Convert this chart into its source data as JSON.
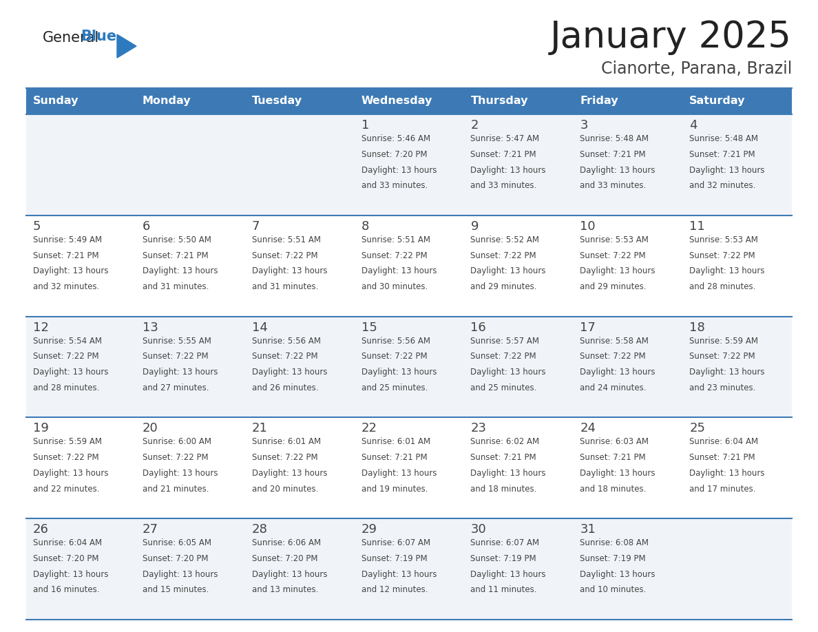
{
  "title": "January 2025",
  "subtitle": "Cianorte, Parana, Brazil",
  "days_of_week": [
    "Sunday",
    "Monday",
    "Tuesday",
    "Wednesday",
    "Thursday",
    "Friday",
    "Saturday"
  ],
  "header_bg": "#3d7ab5",
  "header_text_color": "#ffffff",
  "cell_bg_even": "#f0f4f8",
  "cell_bg_odd": "#ffffff",
  "divider_color": "#3d7ab5",
  "text_color": "#444444",
  "title_color": "#222222",
  "subtitle_color": "#444444",
  "logo_general_color": "#222222",
  "logo_blue_color": "#2e7abf",
  "calendar_data": [
    {
      "day": 1,
      "row": 0,
      "col": 3,
      "sunrise": "5:46 AM",
      "sunset": "7:20 PM",
      "daylight_hours": 13,
      "daylight_minutes": 33
    },
    {
      "day": 2,
      "row": 0,
      "col": 4,
      "sunrise": "5:47 AM",
      "sunset": "7:21 PM",
      "daylight_hours": 13,
      "daylight_minutes": 33
    },
    {
      "day": 3,
      "row": 0,
      "col": 5,
      "sunrise": "5:48 AM",
      "sunset": "7:21 PM",
      "daylight_hours": 13,
      "daylight_minutes": 33
    },
    {
      "day": 4,
      "row": 0,
      "col": 6,
      "sunrise": "5:48 AM",
      "sunset": "7:21 PM",
      "daylight_hours": 13,
      "daylight_minutes": 32
    },
    {
      "day": 5,
      "row": 1,
      "col": 0,
      "sunrise": "5:49 AM",
      "sunset": "7:21 PM",
      "daylight_hours": 13,
      "daylight_minutes": 32
    },
    {
      "day": 6,
      "row": 1,
      "col": 1,
      "sunrise": "5:50 AM",
      "sunset": "7:21 PM",
      "daylight_hours": 13,
      "daylight_minutes": 31
    },
    {
      "day": 7,
      "row": 1,
      "col": 2,
      "sunrise": "5:51 AM",
      "sunset": "7:22 PM",
      "daylight_hours": 13,
      "daylight_minutes": 31
    },
    {
      "day": 8,
      "row": 1,
      "col": 3,
      "sunrise": "5:51 AM",
      "sunset": "7:22 PM",
      "daylight_hours": 13,
      "daylight_minutes": 30
    },
    {
      "day": 9,
      "row": 1,
      "col": 4,
      "sunrise": "5:52 AM",
      "sunset": "7:22 PM",
      "daylight_hours": 13,
      "daylight_minutes": 29
    },
    {
      "day": 10,
      "row": 1,
      "col": 5,
      "sunrise": "5:53 AM",
      "sunset": "7:22 PM",
      "daylight_hours": 13,
      "daylight_minutes": 29
    },
    {
      "day": 11,
      "row": 1,
      "col": 6,
      "sunrise": "5:53 AM",
      "sunset": "7:22 PM",
      "daylight_hours": 13,
      "daylight_minutes": 28
    },
    {
      "day": 12,
      "row": 2,
      "col": 0,
      "sunrise": "5:54 AM",
      "sunset": "7:22 PM",
      "daylight_hours": 13,
      "daylight_minutes": 28
    },
    {
      "day": 13,
      "row": 2,
      "col": 1,
      "sunrise": "5:55 AM",
      "sunset": "7:22 PM",
      "daylight_hours": 13,
      "daylight_minutes": 27
    },
    {
      "day": 14,
      "row": 2,
      "col": 2,
      "sunrise": "5:56 AM",
      "sunset": "7:22 PM",
      "daylight_hours": 13,
      "daylight_minutes": 26
    },
    {
      "day": 15,
      "row": 2,
      "col": 3,
      "sunrise": "5:56 AM",
      "sunset": "7:22 PM",
      "daylight_hours": 13,
      "daylight_minutes": 25
    },
    {
      "day": 16,
      "row": 2,
      "col": 4,
      "sunrise": "5:57 AM",
      "sunset": "7:22 PM",
      "daylight_hours": 13,
      "daylight_minutes": 25
    },
    {
      "day": 17,
      "row": 2,
      "col": 5,
      "sunrise": "5:58 AM",
      "sunset": "7:22 PM",
      "daylight_hours": 13,
      "daylight_minutes": 24
    },
    {
      "day": 18,
      "row": 2,
      "col": 6,
      "sunrise": "5:59 AM",
      "sunset": "7:22 PM",
      "daylight_hours": 13,
      "daylight_minutes": 23
    },
    {
      "day": 19,
      "row": 3,
      "col": 0,
      "sunrise": "5:59 AM",
      "sunset": "7:22 PM",
      "daylight_hours": 13,
      "daylight_minutes": 22
    },
    {
      "day": 20,
      "row": 3,
      "col": 1,
      "sunrise": "6:00 AM",
      "sunset": "7:22 PM",
      "daylight_hours": 13,
      "daylight_minutes": 21
    },
    {
      "day": 21,
      "row": 3,
      "col": 2,
      "sunrise": "6:01 AM",
      "sunset": "7:22 PM",
      "daylight_hours": 13,
      "daylight_minutes": 20
    },
    {
      "day": 22,
      "row": 3,
      "col": 3,
      "sunrise": "6:01 AM",
      "sunset": "7:21 PM",
      "daylight_hours": 13,
      "daylight_minutes": 19
    },
    {
      "day": 23,
      "row": 3,
      "col": 4,
      "sunrise": "6:02 AM",
      "sunset": "7:21 PM",
      "daylight_hours": 13,
      "daylight_minutes": 18
    },
    {
      "day": 24,
      "row": 3,
      "col": 5,
      "sunrise": "6:03 AM",
      "sunset": "7:21 PM",
      "daylight_hours": 13,
      "daylight_minutes": 18
    },
    {
      "day": 25,
      "row": 3,
      "col": 6,
      "sunrise": "6:04 AM",
      "sunset": "7:21 PM",
      "daylight_hours": 13,
      "daylight_minutes": 17
    },
    {
      "day": 26,
      "row": 4,
      "col": 0,
      "sunrise": "6:04 AM",
      "sunset": "7:20 PM",
      "daylight_hours": 13,
      "daylight_minutes": 16
    },
    {
      "day": 27,
      "row": 4,
      "col": 1,
      "sunrise": "6:05 AM",
      "sunset": "7:20 PM",
      "daylight_hours": 13,
      "daylight_minutes": 15
    },
    {
      "day": 28,
      "row": 4,
      "col": 2,
      "sunrise": "6:06 AM",
      "sunset": "7:20 PM",
      "daylight_hours": 13,
      "daylight_minutes": 13
    },
    {
      "day": 29,
      "row": 4,
      "col": 3,
      "sunrise": "6:07 AM",
      "sunset": "7:19 PM",
      "daylight_hours": 13,
      "daylight_minutes": 12
    },
    {
      "day": 30,
      "row": 4,
      "col": 4,
      "sunrise": "6:07 AM",
      "sunset": "7:19 PM",
      "daylight_hours": 13,
      "daylight_minutes": 11
    },
    {
      "day": 31,
      "row": 4,
      "col": 5,
      "sunrise": "6:08 AM",
      "sunset": "7:19 PM",
      "daylight_hours": 13,
      "daylight_minutes": 10
    }
  ]
}
